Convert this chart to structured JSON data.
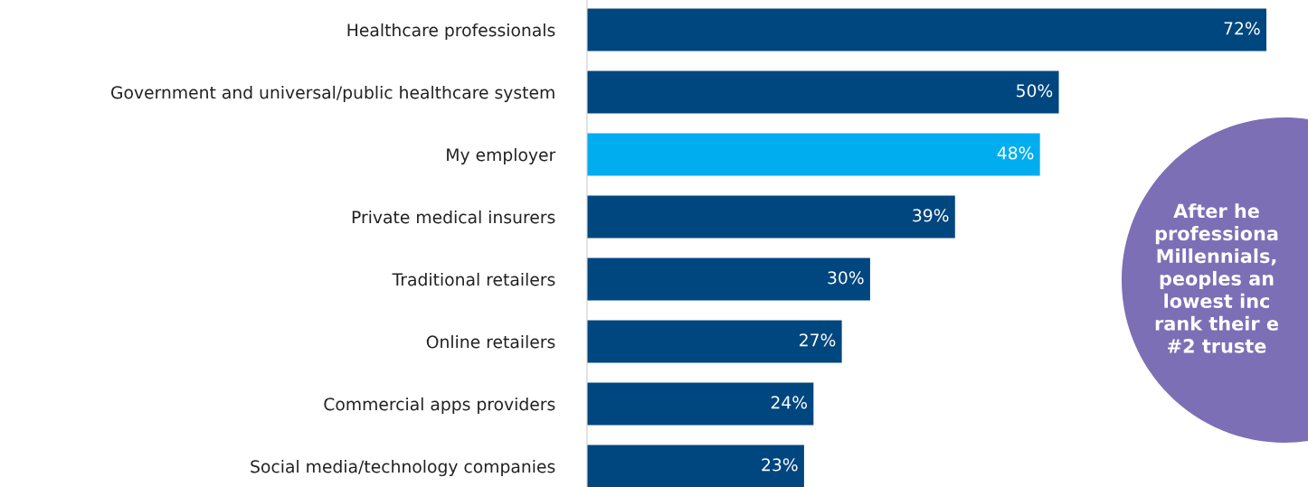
{
  "chart_data": {
    "type": "bar",
    "orientation": "horizontal",
    "categories": [
      "Healthcare professionals",
      "Government and universal/public healthcare system",
      "My employer",
      "Private medical insurers",
      "Traditional retailers",
      "Online retailers",
      "Commercial apps providers",
      "Social media/technology companies"
    ],
    "values": [
      72,
      50,
      48,
      39,
      30,
      27,
      24,
      23
    ],
    "colors": [
      "#00467f",
      "#00467f",
      "#00aeef",
      "#00467f",
      "#00467f",
      "#00467f",
      "#00467f",
      "#00467f"
    ],
    "value_labels": [
      "72%",
      "50%",
      "48%",
      "39%",
      "30%",
      "27%",
      "24%",
      "23%"
    ],
    "annotations": [
      "After he\nprofessiona\nMillennials,\npeoples an\nlowest inc\nrank their e\n#2 truste"
    ]
  }
}
